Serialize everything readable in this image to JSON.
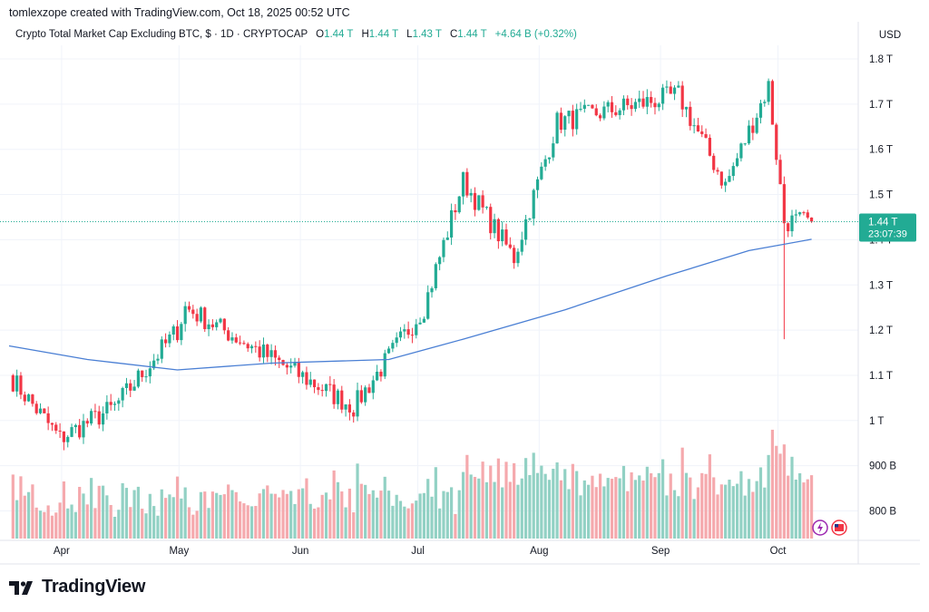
{
  "attribution": "tomlexzope created with TradingView.com, Oct 18, 2025 00:52 UTC",
  "legend": {
    "symbol": "Crypto Total Market Cap Excluding BTC, $ · 1D · CRYPTOCAP",
    "o_label": "O",
    "o_value": "1.44 T",
    "h_label": "H",
    "h_value": "1.44 T",
    "l_label": "L",
    "l_value": "1.43 T",
    "c_label": "C",
    "c_value": "1.44 T",
    "change": "+4.64 B (+0.32%)"
  },
  "currency_label": "USD",
  "price_tag": {
    "value": "1.44 T",
    "countdown": "23:07:39"
  },
  "footer_logo_text": "TradingView",
  "colors": {
    "up": "#22ab94",
    "down": "#f23645",
    "volume_up": "#92d1c4",
    "volume_down": "#f5a9ad",
    "ma": "#4a7fd4"
  },
  "chart_data": {
    "type": "candlestick",
    "title": "Crypto Total Market Cap Excluding BTC",
    "y_axis": {
      "unit": "USD",
      "ticks": [
        {
          "label": "1.8 T",
          "value": 1.8
        },
        {
          "label": "1.7 T",
          "value": 1.7
        },
        {
          "label": "1.6 T",
          "value": 1.6
        },
        {
          "label": "1.5 T",
          "value": 1.5
        },
        {
          "label": "1.4 T",
          "value": 1.4
        },
        {
          "label": "1.3 T",
          "value": 1.3
        },
        {
          "label": "1.2 T",
          "value": 1.2
        },
        {
          "label": "1.1 T",
          "value": 1.1
        },
        {
          "label": "1 T",
          "value": 1.0
        },
        {
          "label": "900 B",
          "value": 0.9
        },
        {
          "label": "800 B",
          "value": 0.8
        }
      ],
      "range": [
        0.74,
        1.83
      ]
    },
    "x_axis": {
      "range": [
        "2025-03-26",
        "2025-10-25"
      ],
      "ticks": [
        {
          "label": "Apr",
          "date": "2025-04-01"
        },
        {
          "label": "May",
          "date": "2025-05-01"
        },
        {
          "label": "Jun",
          "date": "2025-06-01"
        },
        {
          "label": "Jul",
          "date": "2025-07-01"
        },
        {
          "label": "Aug",
          "date": "2025-08-01"
        },
        {
          "label": "Sep",
          "date": "2025-09-01"
        },
        {
          "label": "Oct",
          "date": "2025-10-01"
        }
      ]
    },
    "last_price": 1.44,
    "key_points": [
      {
        "date": "2025-03-26",
        "close": 1.1
      },
      {
        "date": "2025-04-08",
        "close": 0.96
      },
      {
        "date": "2025-04-22",
        "close": 1.03
      },
      {
        "date": "2025-05-08",
        "close": 1.2
      },
      {
        "date": "2025-05-10",
        "close": 1.25
      },
      {
        "date": "2025-06-22",
        "close": 1.03
      },
      {
        "date": "2025-07-10",
        "close": 1.25
      },
      {
        "date": "2025-07-20",
        "close": 1.53
      },
      {
        "date": "2025-08-02",
        "close": 1.36
      },
      {
        "date": "2025-08-13",
        "close": 1.66
      },
      {
        "date": "2025-09-13",
        "close": 1.72
      },
      {
        "date": "2025-09-25",
        "close": 1.52
      },
      {
        "date": "2025-10-06",
        "close": 1.74
      },
      {
        "date": "2025-10-10",
        "close": 1.44
      },
      {
        "date": "2025-10-17",
        "close": 1.44
      }
    ],
    "moving_average": [
      {
        "date": "2025-03-26",
        "value": 1.165
      },
      {
        "date": "2025-04-15",
        "value": 1.135
      },
      {
        "date": "2025-05-08",
        "value": 1.112
      },
      {
        "date": "2025-06-01",
        "value": 1.127
      },
      {
        "date": "2025-07-01",
        "value": 1.135
      },
      {
        "date": "2025-07-20",
        "value": 1.18
      },
      {
        "date": "2025-08-15",
        "value": 1.245
      },
      {
        "date": "2025-09-10",
        "value": 1.32
      },
      {
        "date": "2025-10-01",
        "value": 1.376
      },
      {
        "date": "2025-10-17",
        "value": 1.401
      }
    ],
    "volume_axis": {
      "shares_price_scale": true
    }
  }
}
